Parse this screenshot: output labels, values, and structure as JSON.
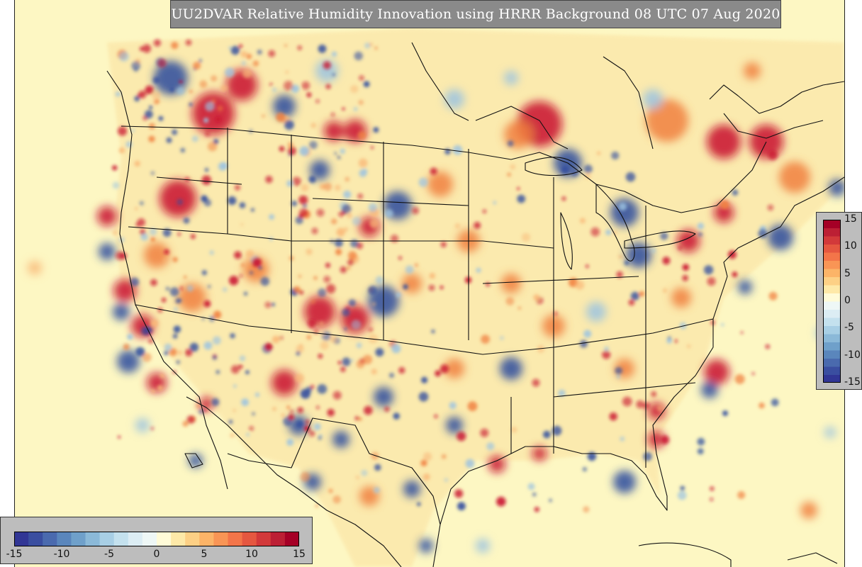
{
  "title": "UU2DVAR Relative Humidity Innovation using HRRR Background 08 UTC 07 Aug 2020",
  "colorbar": {
    "min": -15,
    "max": 15,
    "step": 1,
    "colors": [
      "#313695",
      "#3a4ea0",
      "#4a6aae",
      "#5a86bc",
      "#6fa0ca",
      "#8bb9d8",
      "#a8cfe5",
      "#c4e1ee",
      "#dcedf4",
      "#eef7f6",
      "#fffbd8",
      "#fee9a8",
      "#fdd085",
      "#fcb468",
      "#f99555",
      "#f37549",
      "#e55740",
      "#d2393a",
      "#bc1f34",
      "#a50026"
    ],
    "vertical_tick_labels": [
      "15",
      "10",
      "5",
      "0",
      "-5",
      "-10",
      "-15"
    ],
    "horizontal_tick_labels": [
      "-15",
      "-10",
      "-5",
      "0",
      "5",
      "10",
      "15"
    ]
  }
}
